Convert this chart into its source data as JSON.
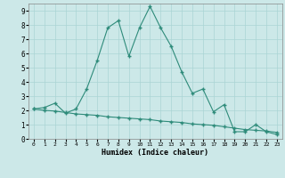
{
  "x_line1": [
    0,
    1,
    2,
    3,
    4,
    5,
    6,
    7,
    8,
    9,
    10,
    11,
    12,
    13,
    14,
    15,
    16,
    17,
    18,
    19,
    20,
    21,
    22,
    23
  ],
  "y_line1": [
    2.1,
    2.2,
    2.5,
    1.8,
    2.1,
    3.5,
    5.5,
    7.8,
    8.3,
    5.8,
    7.8,
    9.3,
    7.8,
    6.5,
    4.7,
    3.2,
    3.5,
    1.9,
    2.4,
    0.5,
    0.5,
    1.0,
    0.5,
    0.3
  ],
  "x_line2": [
    0,
    1,
    2,
    3,
    4,
    5,
    6,
    7,
    8,
    9,
    10,
    11,
    12,
    13,
    14,
    15,
    16,
    17,
    18,
    19,
    20,
    21,
    22,
    23
  ],
  "y_line2": [
    2.1,
    2.0,
    1.95,
    1.85,
    1.75,
    1.7,
    1.65,
    1.55,
    1.5,
    1.45,
    1.4,
    1.35,
    1.25,
    1.2,
    1.15,
    1.05,
    1.0,
    0.95,
    0.85,
    0.75,
    0.65,
    0.6,
    0.55,
    0.45
  ],
  "line_color": "#2e8b7a",
  "bg_color": "#cce8e8",
  "grid_color": "#aad4d4",
  "xlabel": "Humidex (Indice chaleur)",
  "ylim": [
    0,
    9.5
  ],
  "xlim": [
    -0.5,
    23.5
  ],
  "yticks": [
    0,
    1,
    2,
    3,
    4,
    5,
    6,
    7,
    8,
    9
  ],
  "xticks": [
    0,
    1,
    2,
    3,
    4,
    5,
    6,
    7,
    8,
    9,
    10,
    11,
    12,
    13,
    14,
    15,
    16,
    17,
    18,
    19,
    20,
    21,
    22,
    23
  ]
}
